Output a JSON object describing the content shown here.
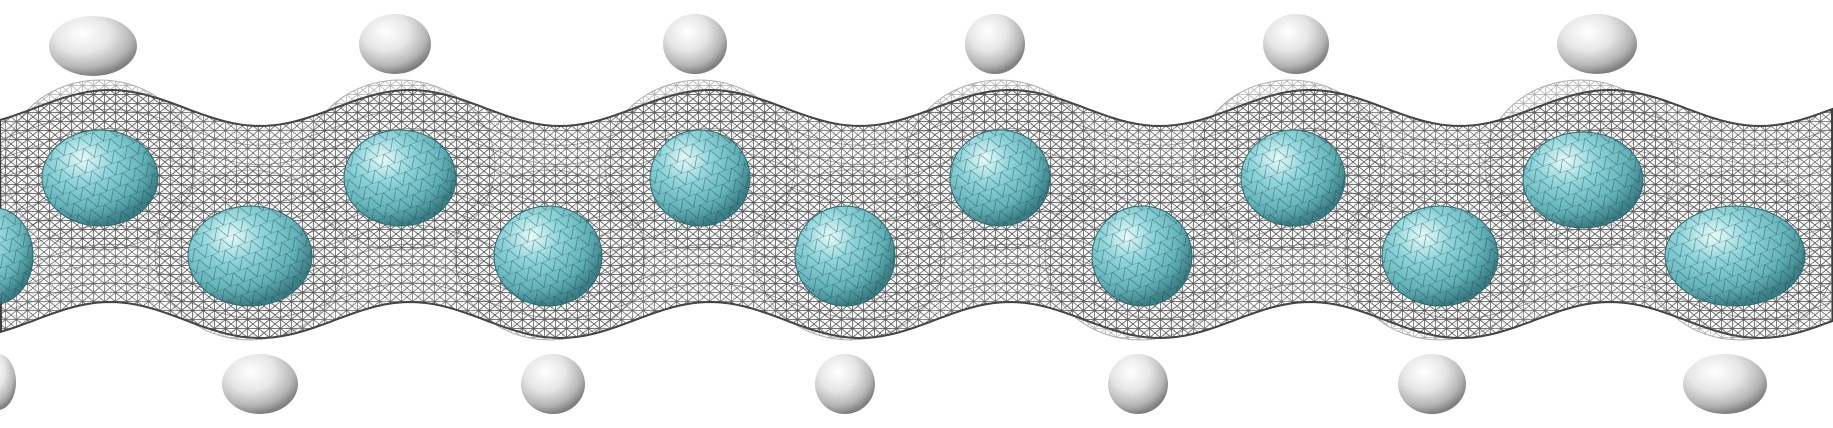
{
  "scene": {
    "description_type": "molecular-orbital-isosurface-render",
    "background_color": "#ffffff",
    "mesh_color": "#4a4a4a",
    "atom_colors": {
      "core": "#7cc7cc",
      "core_highlight": "#d8f3f4",
      "core_shadow": "#3f8d93",
      "outer": "#d9d9d9",
      "outer_highlight": "#ffffff",
      "outer_shadow": "#8c8c8c"
    },
    "icons": {
      "core_atom": "cyan-sphere-icon",
      "outer_atom": "white-sphere-icon",
      "isosurface": "wireframe-mesh-icon"
    }
  }
}
